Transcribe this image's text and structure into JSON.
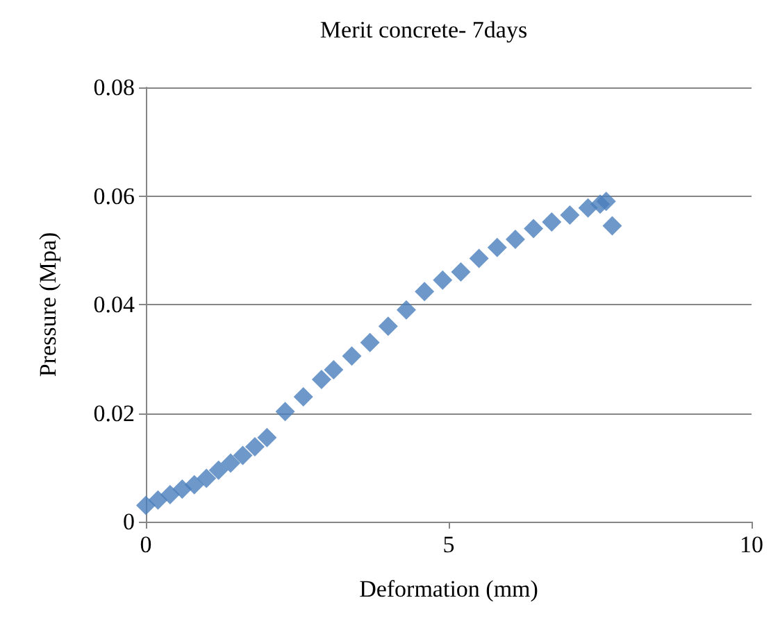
{
  "chart_data": {
    "type": "scatter",
    "title": "Merit concrete- 7days",
    "xlabel": "Deformation (mm)",
    "ylabel": "Pressure (Mpa)",
    "x": [
      0,
      0.2,
      0.4,
      0.6,
      0.8,
      1.0,
      1.2,
      1.4,
      1.6,
      1.8,
      2.0,
      2.3,
      2.6,
      2.9,
      3.1,
      3.4,
      3.7,
      4.0,
      4.3,
      4.6,
      4.9,
      5.2,
      5.5,
      5.8,
      6.1,
      6.4,
      6.7,
      7.0,
      7.3,
      7.5,
      7.6,
      7.7
    ],
    "values": [
      0.003,
      0.004,
      0.005,
      0.006,
      0.0068,
      0.008,
      0.0095,
      0.0108,
      0.0122,
      0.0138,
      0.0155,
      0.0203,
      0.023,
      0.0262,
      0.028,
      0.0305,
      0.033,
      0.036,
      0.039,
      0.0424,
      0.0445,
      0.046,
      0.0485,
      0.0505,
      0.052,
      0.054,
      0.0552,
      0.0565,
      0.0578,
      0.0585,
      0.059,
      0.0545
    ],
    "color": "#4a7ebb",
    "marker": "diamond",
    "xlim": [
      0,
      10
    ],
    "xticks": [
      0,
      5,
      10
    ],
    "ylim": [
      0,
      0.08
    ],
    "yticks": [
      0,
      0.02,
      0.04,
      0.06,
      0.08
    ],
    "grid": "y"
  }
}
